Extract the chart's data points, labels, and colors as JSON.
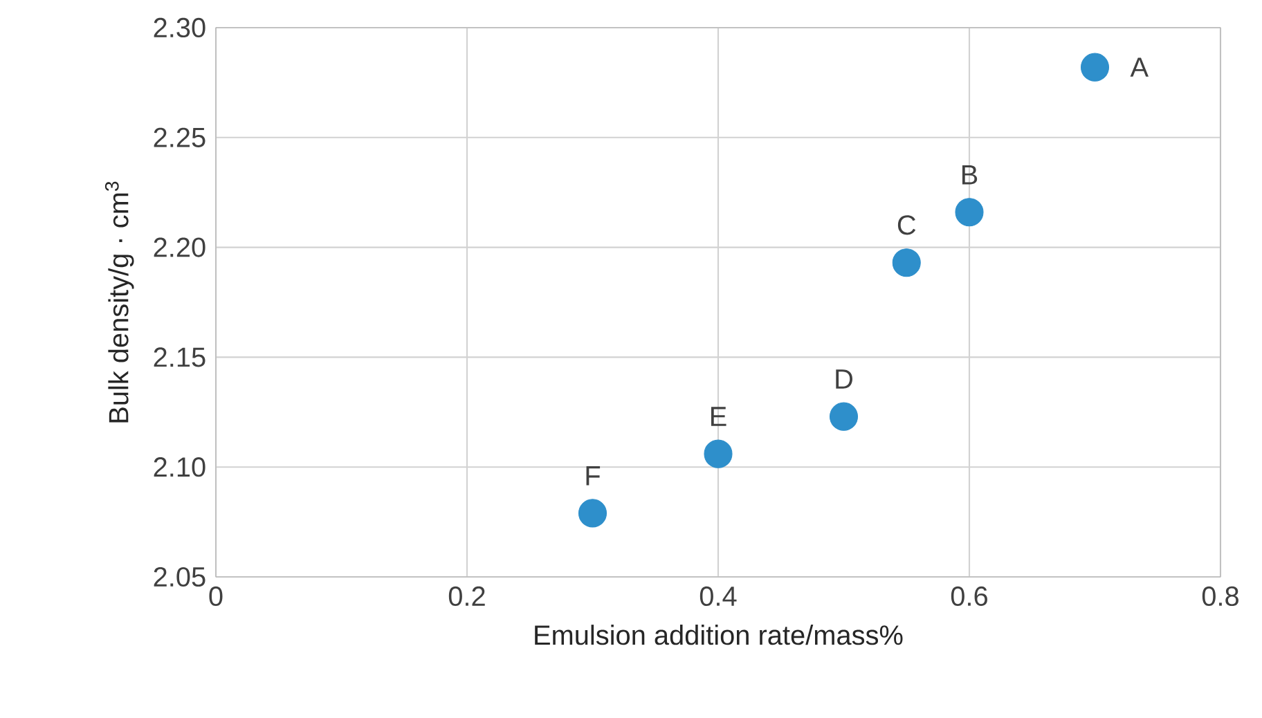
{
  "chart_data": {
    "type": "scatter",
    "xlabel": "Emulsion addition rate/mass%",
    "ylabel": "Bulk density/g · cm$^{3}$",
    "x": [
      0.7,
      0.6,
      0.55,
      0.5,
      0.4,
      0.3
    ],
    "values": [
      2.282,
      2.216,
      2.193,
      2.123,
      2.106,
      2.079
    ],
    "color": "#2e8fcb",
    "grid": true,
    "xlim": [
      0,
      0.8
    ],
    "xticks": [
      0,
      0.2,
      0.4,
      0.6,
      0.8
    ],
    "ylim": [
      2.05,
      2.3
    ],
    "yticks": [
      2.05,
      {
        "value": 2.1,
        "label": "2.10"
      },
      2.15,
      {
        "value": 2.2,
        "label": "2.20"
      },
      2.25,
      {
        "value": 2.3,
        "label": "2.30"
      }
    ],
    "annotations": [
      {
        "text": "A",
        "x": 0.7,
        "y": 2.282
      },
      {
        "text": "B",
        "x": 0.6,
        "y": 2.216
      },
      {
        "text": "C",
        "x": 0.55,
        "y": 2.193
      },
      {
        "text": "D",
        "x": 0.5,
        "y": 2.123
      },
      {
        "text": "E",
        "x": 0.4,
        "y": 2.106
      },
      {
        "text": "F",
        "x": 0.3,
        "y": 2.079
      }
    ]
  }
}
